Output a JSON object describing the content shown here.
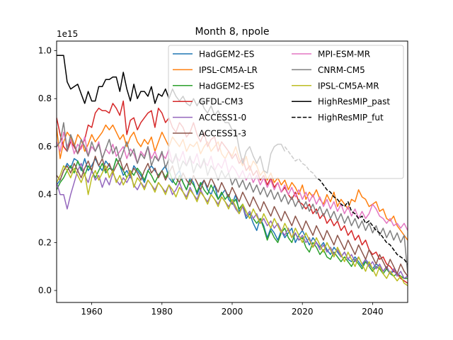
{
  "chart_data": {
    "type": "line",
    "title": "Month 8, npole",
    "offset_text": "1e15",
    "xlim": [
      1950,
      2050
    ],
    "ylim": [
      -0.05,
      1.04
    ],
    "x_ticks": [
      1960,
      1980,
      2000,
      2020,
      2040
    ],
    "y_ticks": [
      0.0,
      0.2,
      0.4,
      0.6,
      0.8,
      1.0
    ],
    "y_tick_labels": [
      "0.0",
      "0.2",
      "0.4",
      "0.6",
      "0.8",
      "1.0"
    ],
    "legend_position": "upper right",
    "series": [
      {
        "name": "HadGEM2-ES",
        "color": "#1f77b4",
        "dash": "solid",
        "x_start": 1950,
        "values": [
          0.44,
          0.46,
          0.5,
          0.53,
          0.51,
          0.55,
          0.54,
          0.5,
          0.55,
          0.5,
          0.52,
          0.55,
          0.52,
          0.5,
          0.54,
          0.52,
          0.5,
          0.55,
          0.52,
          0.48,
          0.5,
          0.47,
          0.52,
          0.5,
          0.48,
          0.45,
          0.5,
          0.52,
          0.5,
          0.48,
          0.5,
          0.52,
          0.47,
          0.45,
          0.48,
          0.5,
          0.45,
          0.42,
          0.47,
          0.45,
          0.4,
          0.44,
          0.46,
          0.42,
          0.4,
          0.44,
          0.38,
          0.4,
          0.42,
          0.38,
          0.36,
          0.4,
          0.33,
          0.35,
          0.3,
          0.32,
          0.28,
          0.25,
          0.3,
          0.27,
          0.22,
          0.26,
          0.24,
          0.21,
          0.25,
          0.22,
          0.24,
          0.26,
          0.2,
          0.23,
          0.25,
          0.22,
          0.19,
          0.22,
          0.2,
          0.18,
          0.2,
          0.17,
          0.15,
          0.18,
          0.16,
          0.14,
          0.16,
          0.13,
          0.12,
          0.14,
          0.12,
          0.1,
          0.13,
          0.11,
          0.09,
          0.11,
          0.1,
          0.08,
          0.1,
          0.07,
          0.08,
          0.07,
          0.06,
          0.05,
          0.06
        ]
      },
      {
        "name": "IPSL-CM5A-LR",
        "color": "#ff7f0e",
        "dash": "solid",
        "x_start": 1950,
        "values": [
          0.68,
          0.55,
          0.62,
          0.66,
          0.64,
          0.6,
          0.65,
          0.63,
          0.58,
          0.61,
          0.65,
          0.62,
          0.64,
          0.66,
          0.69,
          0.67,
          0.69,
          0.66,
          0.63,
          0.65,
          0.6,
          0.64,
          0.66,
          0.62,
          0.6,
          0.63,
          0.61,
          0.64,
          0.58,
          0.62,
          0.66,
          0.63,
          0.6,
          0.64,
          0.62,
          0.6,
          0.63,
          0.58,
          0.61,
          0.6,
          0.62,
          0.57,
          0.6,
          0.62,
          0.58,
          0.6,
          0.62,
          0.57,
          0.55,
          0.58,
          0.56,
          0.6,
          0.55,
          0.52,
          0.56,
          0.5,
          0.54,
          0.52,
          0.48,
          0.5,
          0.46,
          0.49,
          0.45,
          0.47,
          0.44,
          0.46,
          0.42,
          0.45,
          0.43,
          0.4,
          0.44,
          0.38,
          0.41,
          0.39,
          0.42,
          0.38,
          0.36,
          0.4,
          0.37,
          0.41,
          0.35,
          0.38,
          0.36,
          0.34,
          0.38,
          0.37,
          0.42,
          0.39,
          0.38,
          0.35,
          0.36,
          0.37,
          0.33,
          0.34,
          0.3,
          0.29,
          0.31,
          0.27,
          0.25,
          0.23,
          0.21,
          0.18
        ]
      },
      {
        "name": "HadGEM2-ES",
        "color": "#2ca02c",
        "dash": "solid",
        "x_start": 1950,
        "values": [
          0.42,
          0.45,
          0.47,
          0.5,
          0.52,
          0.49,
          0.54,
          0.51,
          0.48,
          0.52,
          0.5,
          0.47,
          0.5,
          0.53,
          0.49,
          0.51,
          0.5,
          0.55,
          0.52,
          0.5,
          0.47,
          0.5,
          0.48,
          0.51,
          0.49,
          0.46,
          0.5,
          0.48,
          0.45,
          0.48,
          0.5,
          0.47,
          0.5,
          0.46,
          0.44,
          0.48,
          0.45,
          0.42,
          0.46,
          0.44,
          0.41,
          0.45,
          0.42,
          0.4,
          0.44,
          0.41,
          0.38,
          0.41,
          0.38,
          0.4,
          0.36,
          0.38,
          0.34,
          0.36,
          0.31,
          0.33,
          0.3,
          0.28,
          0.3,
          0.26,
          0.21,
          0.25,
          0.22,
          0.2,
          0.24,
          0.26,
          0.22,
          0.2,
          0.24,
          0.21,
          0.22,
          0.18,
          0.16,
          0.2,
          0.18,
          0.15,
          0.17,
          0.14,
          0.13,
          0.16,
          0.14,
          0.12,
          0.14,
          0.12,
          0.1,
          0.13,
          0.11,
          0.09,
          0.12,
          0.1,
          0.08,
          0.1,
          0.09,
          0.07,
          0.09,
          0.07,
          0.06,
          0.07,
          0.06,
          0.05,
          0.05
        ]
      },
      {
        "name": "GFDL-CM3",
        "color": "#d62728",
        "dash": "solid",
        "x_start": 1950,
        "values": [
          0.72,
          0.65,
          0.6,
          0.58,
          0.62,
          0.6,
          0.57,
          0.6,
          0.63,
          0.69,
          0.68,
          0.74,
          0.76,
          0.75,
          0.75,
          0.74,
          0.78,
          0.76,
          0.73,
          0.79,
          0.65,
          0.71,
          0.72,
          0.67,
          0.7,
          0.72,
          0.74,
          0.75,
          0.68,
          0.76,
          0.74,
          0.7,
          0.72,
          0.68,
          0.66,
          0.7,
          0.68,
          0.64,
          0.66,
          0.7,
          0.65,
          0.62,
          0.66,
          0.6,
          0.63,
          0.64,
          0.58,
          0.62,
          0.6,
          0.58,
          0.55,
          0.57,
          0.53,
          0.55,
          0.5,
          0.52,
          0.48,
          0.5,
          0.46,
          0.48,
          0.44,
          0.47,
          0.43,
          0.45,
          0.41,
          0.43,
          0.4,
          0.38,
          0.41,
          0.37,
          0.36,
          0.34,
          0.36,
          0.32,
          0.34,
          0.3,
          0.32,
          0.28,
          0.3,
          0.27,
          0.29,
          0.25,
          0.27,
          0.23,
          0.25,
          0.21,
          0.23,
          0.19,
          0.21,
          0.17,
          0.15,
          0.16,
          0.13,
          0.14,
          0.11,
          0.1,
          0.08,
          0.07,
          0.05,
          0.04,
          0.03
        ]
      },
      {
        "name": "ACCESS1-0",
        "color": "#9467bd",
        "dash": "solid",
        "x_start": 1950,
        "values": [
          0.45,
          0.4,
          0.4,
          0.34,
          0.4,
          0.45,
          0.5,
          0.53,
          0.48,
          0.45,
          0.5,
          0.46,
          0.48,
          0.43,
          0.47,
          0.44,
          0.49,
          0.46,
          0.44,
          0.47,
          0.45,
          0.48,
          0.44,
          0.42,
          0.45,
          0.43,
          0.46,
          0.44,
          0.42,
          0.45,
          0.43,
          0.41,
          0.44,
          0.4,
          0.42,
          0.45,
          0.41,
          0.39,
          0.43,
          0.4,
          0.38,
          0.42,
          0.39,
          0.37,
          0.4,
          0.38,
          0.36,
          0.39,
          0.37,
          0.35,
          0.37,
          0.34,
          0.32,
          0.35,
          0.31,
          0.33,
          0.3,
          0.32,
          0.28,
          0.3,
          0.27,
          0.29,
          0.26,
          0.28,
          0.25,
          0.23,
          0.26,
          0.22,
          0.24,
          0.21,
          0.23,
          0.2,
          0.22,
          0.18,
          0.2,
          0.17,
          0.19,
          0.16,
          0.18,
          0.15,
          0.17,
          0.14,
          0.16,
          0.13,
          0.15,
          0.12,
          0.14,
          0.11,
          0.13,
          0.1,
          0.12,
          0.09,
          0.11,
          0.08,
          0.1,
          0.07,
          0.09,
          0.06,
          0.08,
          0.05,
          0.06
        ]
      },
      {
        "name": "ACCESS1-3",
        "color": "#8c564b",
        "dash": "solid",
        "x_start": 1950,
        "values": [
          0.48,
          0.46,
          0.5,
          0.52,
          0.49,
          0.53,
          0.5,
          0.47,
          0.51,
          0.54,
          0.5,
          0.56,
          0.52,
          0.55,
          0.5,
          0.53,
          0.49,
          0.52,
          0.55,
          0.5,
          0.53,
          0.48,
          0.51,
          0.49,
          0.46,
          0.5,
          0.53,
          0.49,
          0.51,
          0.47,
          0.5,
          0.46,
          0.49,
          0.52,
          0.47,
          0.45,
          0.49,
          0.46,
          0.44,
          0.48,
          0.45,
          0.42,
          0.46,
          0.43,
          0.47,
          0.44,
          0.41,
          0.45,
          0.42,
          0.39,
          0.43,
          0.4,
          0.37,
          0.41,
          0.38,
          0.35,
          0.39,
          0.36,
          0.33,
          0.37,
          0.34,
          0.31,
          0.35,
          0.32,
          0.29,
          0.33,
          0.3,
          0.27,
          0.31,
          0.28,
          0.25,
          0.29,
          0.26,
          0.23,
          0.27,
          0.24,
          0.21,
          0.25,
          0.22,
          0.19,
          0.23,
          0.2,
          0.17,
          0.21,
          0.18,
          0.15,
          0.19,
          0.16,
          0.13,
          0.17,
          0.14,
          0.11,
          0.15,
          0.12,
          0.09,
          0.13,
          0.1,
          0.07,
          0.11,
          0.08,
          0.06
        ]
      },
      {
        "name": "MPI-ESM-MR",
        "color": "#e377c2",
        "dash": "solid",
        "x_start": 1950,
        "values": [
          0.62,
          0.58,
          0.66,
          0.6,
          0.63,
          0.57,
          0.61,
          0.59,
          0.64,
          0.56,
          0.6,
          0.58,
          0.62,
          0.55,
          0.59,
          0.57,
          0.61,
          0.56,
          0.58,
          0.6,
          0.55,
          0.59,
          0.57,
          0.53,
          0.58,
          0.56,
          0.6,
          0.55,
          0.58,
          0.54,
          0.57,
          0.55,
          0.59,
          0.53,
          0.56,
          0.54,
          0.58,
          0.52,
          0.55,
          0.53,
          0.57,
          0.51,
          0.54,
          0.52,
          0.56,
          0.5,
          0.53,
          0.51,
          0.55,
          0.49,
          0.52,
          0.5,
          0.47,
          0.5,
          0.46,
          0.49,
          0.45,
          0.48,
          0.44,
          0.47,
          0.43,
          0.46,
          0.42,
          0.45,
          0.41,
          0.44,
          0.4,
          0.43,
          0.39,
          0.42,
          0.38,
          0.41,
          0.37,
          0.4,
          0.36,
          0.39,
          0.35,
          0.38,
          0.34,
          0.37,
          0.33,
          0.36,
          0.32,
          0.35,
          0.31,
          0.34,
          0.3,
          0.33,
          0.3,
          0.32,
          0.36,
          0.34,
          0.31,
          0.3,
          0.28,
          0.3,
          0.27,
          0.28,
          0.26,
          0.28,
          0.25
        ]
      },
      {
        "name": "CNRM-CM5",
        "color": "#7f7f7f",
        "dash": "solid",
        "x_start": 1950,
        "values": [
          0.6,
          0.62,
          0.7,
          0.58,
          0.65,
          0.61,
          0.57,
          0.63,
          0.6,
          0.56,
          0.62,
          0.58,
          0.61,
          0.55,
          0.59,
          0.63,
          0.57,
          0.6,
          0.54,
          0.58,
          0.62,
          0.56,
          0.59,
          0.53,
          0.57,
          0.55,
          0.6,
          0.52,
          0.56,
          0.54,
          0.58,
          0.51,
          0.55,
          0.53,
          0.57,
          0.5,
          0.54,
          0.52,
          0.56,
          0.49,
          0.53,
          0.51,
          0.55,
          0.48,
          0.52,
          0.5,
          0.46,
          0.5,
          0.47,
          0.49,
          0.44,
          0.47,
          0.43,
          0.46,
          0.42,
          0.45,
          0.41,
          0.44,
          0.4,
          0.43,
          0.39,
          0.42,
          0.38,
          0.41,
          0.37,
          0.4,
          0.36,
          0.39,
          0.35,
          0.38,
          0.34,
          0.37,
          0.33,
          0.36,
          0.32,
          0.35,
          0.31,
          0.34,
          0.3,
          0.33,
          0.29,
          0.32,
          0.28,
          0.31,
          0.27,
          0.3,
          0.26,
          0.29,
          0.25,
          0.28,
          0.24,
          0.27,
          0.23,
          0.26,
          0.22,
          0.25,
          0.21,
          0.24,
          0.2,
          0.23,
          0.07
        ]
      },
      {
        "name": "IPSL-CM5A-MR",
        "color": "#bcbd22",
        "dash": "solid",
        "x_start": 1950,
        "values": [
          0.45,
          0.48,
          0.52,
          0.5,
          0.47,
          0.51,
          0.48,
          0.45,
          0.49,
          0.4,
          0.47,
          0.5,
          0.46,
          0.49,
          0.52,
          0.47,
          0.5,
          0.45,
          0.48,
          0.44,
          0.47,
          0.5,
          0.43,
          0.47,
          0.45,
          0.42,
          0.46,
          0.44,
          0.41,
          0.45,
          0.43,
          0.4,
          0.44,
          0.42,
          0.39,
          0.43,
          0.41,
          0.38,
          0.42,
          0.4,
          0.37,
          0.41,
          0.39,
          0.36,
          0.4,
          0.38,
          0.35,
          0.39,
          0.37,
          0.34,
          0.38,
          0.35,
          0.32,
          0.36,
          0.33,
          0.3,
          0.34,
          0.31,
          0.28,
          0.32,
          0.29,
          0.26,
          0.3,
          0.27,
          0.24,
          0.28,
          0.25,
          0.22,
          0.26,
          0.23,
          0.2,
          0.24,
          0.21,
          0.18,
          0.22,
          0.19,
          0.16,
          0.2,
          0.17,
          0.14,
          0.18,
          0.15,
          0.12,
          0.16,
          0.13,
          0.1,
          0.14,
          0.11,
          0.08,
          0.12,
          0.09,
          0.06,
          0.1,
          0.07,
          0.05,
          0.08,
          0.06,
          0.04,
          0.06,
          0.03,
          0.02
        ]
      },
      {
        "name": "HighResMIP_past",
        "color": "#000000",
        "dash": "solid",
        "x_start": 1950,
        "values": [
          0.98,
          0.98,
          0.98,
          0.87,
          0.84,
          0.85,
          0.86,
          0.82,
          0.78,
          0.83,
          0.79,
          0.79,
          0.85,
          0.85,
          0.88,
          0.88,
          0.89,
          0.89,
          0.83,
          0.91,
          0.84,
          0.79,
          0.86,
          0.8,
          0.83,
          0.83,
          0.81,
          0.85,
          0.78,
          0.82,
          0.81,
          0.84,
          0.8,
          0.84,
          0.81,
          0.79,
          0.81,
          0.78,
          0.77,
          0.8,
          0.77,
          0.8,
          0.76,
          0.74,
          0.77,
          0.73,
          0.75,
          0.72,
          0.7,
          0.7,
          0.67,
          0.67,
          0.59,
          0.53,
          0.58,
          0.6,
          0.56,
          0.53,
          0.56,
          0.5,
          0.49,
          0.57,
          0.6,
          0.61,
          0.61,
          0.58
        ]
      },
      {
        "name": "HighResMIP_fut",
        "color": "#000000",
        "dash": "dashed",
        "x_start": 2015,
        "values": [
          0.6,
          0.58,
          0.56,
          0.54,
          0.55,
          0.53,
          0.52,
          0.5,
          0.49,
          0.47,
          0.46,
          0.44,
          0.42,
          0.41,
          0.39,
          0.38,
          0.36,
          0.35,
          0.37,
          0.33,
          0.32,
          0.3,
          0.31,
          0.28,
          0.29,
          0.27,
          0.25,
          0.24,
          0.22,
          0.2,
          0.19,
          0.17,
          0.15,
          0.14,
          0.13,
          0.11,
          0.1
        ]
      }
    ]
  }
}
